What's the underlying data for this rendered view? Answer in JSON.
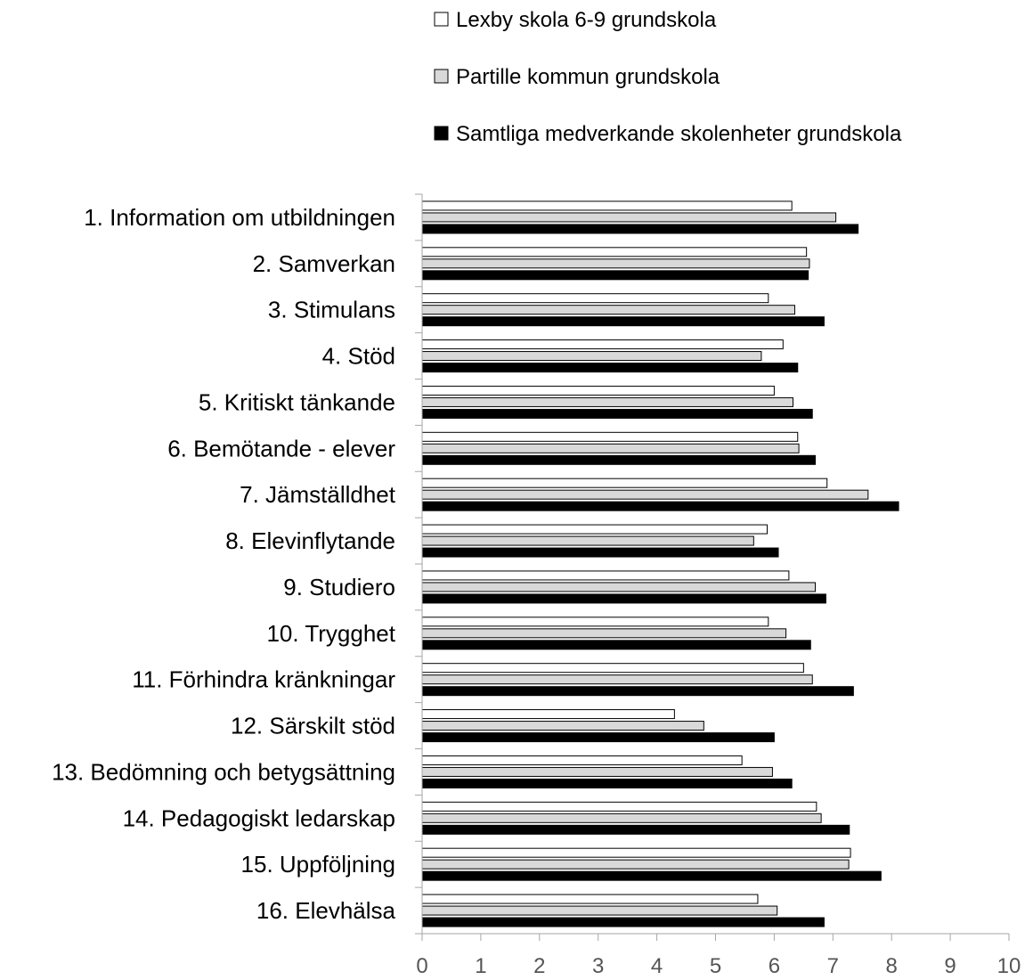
{
  "chart_data": {
    "type": "bar",
    "orientation": "horizontal",
    "categories": [
      "1. Information om utbildningen",
      "2. Samverkan",
      "3. Stimulans",
      "4. Stöd",
      "5. Kritiskt tänkande",
      "6. Bemötande - elever",
      "7. Jämställdhet",
      "8. Elevinflytande",
      "9. Studiero",
      "10. Trygghet",
      "11. Förhindra kränkningar",
      "12. Särskilt stöd",
      "13. Bedömning och betygsättning",
      "14. Pedagogiskt ledarskap",
      "15. Uppföljning",
      "16. Elevhälsa"
    ],
    "series": [
      {
        "name": "Lexby skola 6-9 grundskola",
        "color": "#ffffff",
        "values": [
          6.3,
          6.55,
          5.9,
          6.15,
          6.0,
          6.4,
          6.9,
          5.88,
          6.25,
          5.9,
          6.5,
          4.3,
          5.45,
          6.72,
          7.3,
          5.72
        ]
      },
      {
        "name": "Partille kommun grundskola",
        "color": "#d9d9d9",
        "values": [
          7.05,
          6.6,
          6.35,
          5.78,
          6.32,
          6.42,
          7.6,
          5.65,
          6.7,
          6.2,
          6.65,
          4.8,
          5.97,
          6.8,
          7.27,
          6.05
        ]
      },
      {
        "name": "Samtliga medverkande skolenheter grundskola",
        "color": "#000000",
        "values": [
          7.43,
          6.58,
          6.85,
          6.4,
          6.65,
          6.7,
          8.12,
          6.07,
          6.88,
          6.62,
          7.35,
          6.0,
          6.3,
          7.28,
          7.82,
          6.85
        ]
      }
    ],
    "xlim": [
      0,
      10
    ],
    "xticks": [
      "0",
      "1",
      "2",
      "3",
      "4",
      "5",
      "6",
      "7",
      "8",
      "9",
      "10"
    ],
    "grid": false,
    "legend_position": "top"
  }
}
